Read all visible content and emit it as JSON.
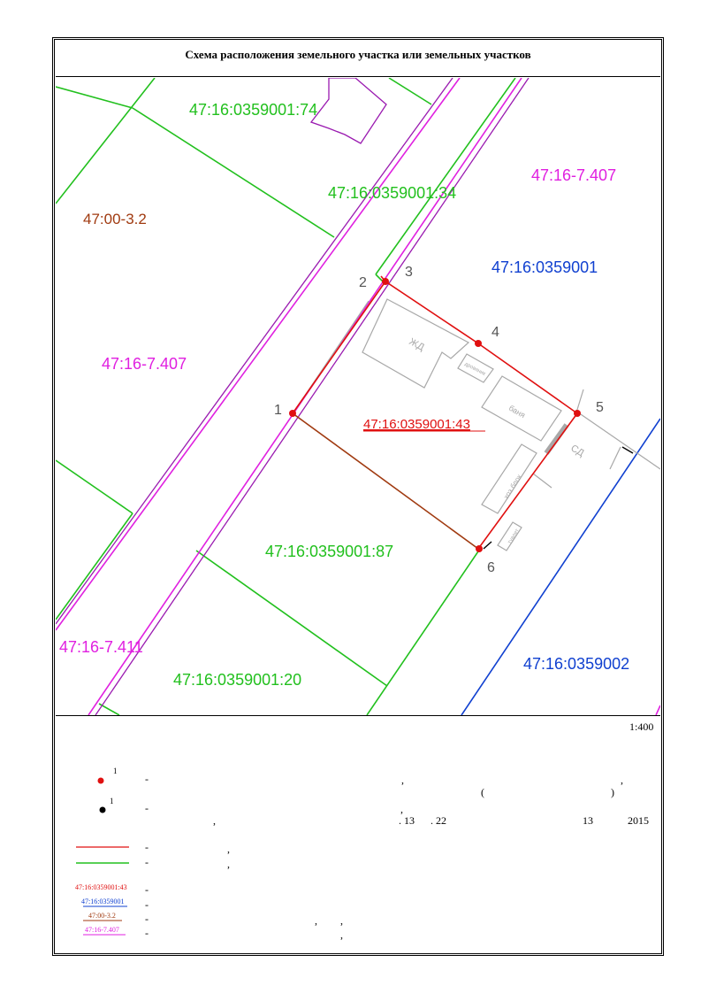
{
  "title": "Схема расположения земельного участка или земельных участков",
  "scale": "1:400",
  "colors": {
    "green": "#22c01e",
    "magenta": "#e020e0",
    "purple": "#9a1ab0",
    "red": "#e01010",
    "brown": "#a03a10",
    "blue": "#1040d0",
    "gray": "#a8a8a8"
  },
  "parcel_labels": {
    "p74": "47:16:0359001:74",
    "p34": "47:16:0359001:34",
    "p87": "47:16:0359001:87",
    "p20": "47:16:0359001:20",
    "p43": "47:16:0359001:43",
    "q001": "47:16:0359001",
    "q002": "47:16:0359002",
    "z407_top": "47:16-7.407",
    "z407_left": "47:16-7.407",
    "z411": "47:16-7.411",
    "z32": "47:00-3.2"
  },
  "point_labels": [
    "1",
    "2",
    "3",
    "4",
    "5",
    "6"
  ],
  "building_labels": {
    "house": "ЖД",
    "banya": "баня",
    "hoz": "хоз.блок",
    "small1": "дровяник",
    "small2": "туалет",
    "sd": "СД"
  },
  "legend": {
    "red_point_sup": "1",
    "black_point_sup": "1",
    "dash": "-",
    "comma": ",",
    "paren_open": "(",
    "paren_close": ")",
    "num_13a": ". 13",
    "num_22": ". 22",
    "num_13b": "13",
    "year": "2015",
    "leg_43": "47:16:0359001:43",
    "leg_001": "47:16:0359001",
    "leg_32": "47:00-3.2",
    "leg_407": "47:16-7.407"
  }
}
